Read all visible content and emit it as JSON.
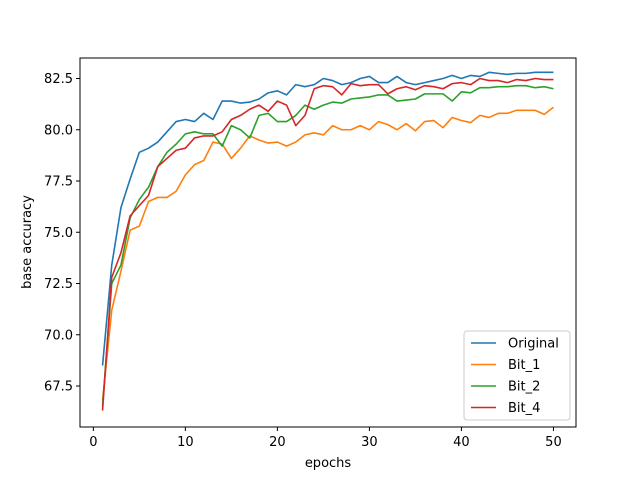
{
  "chart_data": {
    "type": "line",
    "title": "",
    "xlabel": "epochs",
    "ylabel": "base accuracy",
    "xlim": [
      -1.45,
      52.45
    ],
    "ylim": [
      65.5,
      83.5
    ],
    "x_ticks": [
      0,
      10,
      20,
      30,
      40,
      50
    ],
    "x_tick_labels": [
      "0",
      "10",
      "20",
      "30",
      "40",
      "50"
    ],
    "y_ticks": [
      67.5,
      70.0,
      72.5,
      75.0,
      77.5,
      80.0,
      82.5
    ],
    "y_tick_labels": [
      "67.5",
      "70.0",
      "72.5",
      "75.0",
      "77.5",
      "80.0",
      "82.5"
    ],
    "grid": false,
    "legend_position": "bottom-right",
    "x": [
      1,
      2,
      3,
      4,
      5,
      6,
      7,
      8,
      9,
      10,
      11,
      12,
      13,
      14,
      15,
      16,
      17,
      18,
      19,
      20,
      21,
      22,
      23,
      24,
      25,
      26,
      27,
      28,
      29,
      30,
      31,
      32,
      33,
      34,
      35,
      36,
      37,
      38,
      39,
      40,
      41,
      42,
      43,
      44,
      45,
      46,
      47,
      48,
      49,
      50
    ],
    "series": [
      {
        "name": "Original",
        "color": "#1f77b4",
        "values": [
          68.5,
          73.4,
          76.2,
          77.6,
          78.9,
          79.1,
          79.4,
          79.9,
          80.4,
          80.5,
          80.4,
          80.8,
          80.5,
          81.4,
          81.4,
          81.3,
          81.35,
          81.5,
          81.8,
          81.9,
          81.7,
          82.2,
          82.1,
          82.2,
          82.5,
          82.4,
          82.2,
          82.3,
          82.5,
          82.6,
          82.3,
          82.3,
          82.6,
          82.3,
          82.2,
          82.3,
          82.4,
          82.5,
          82.65,
          82.5,
          82.65,
          82.6,
          82.8,
          82.75,
          82.7,
          82.75,
          82.75,
          82.8,
          82.8,
          82.8
        ]
      },
      {
        "name": "Bit_1",
        "color": "#ff7f0e",
        "values": [
          66.8,
          71.2,
          73.1,
          75.1,
          75.3,
          76.5,
          76.7,
          76.7,
          77.0,
          77.8,
          78.3,
          78.5,
          79.4,
          79.3,
          78.6,
          79.1,
          79.7,
          79.5,
          79.35,
          79.4,
          79.2,
          79.4,
          79.75,
          79.85,
          79.75,
          80.2,
          80.0,
          80.0,
          80.2,
          80.0,
          80.4,
          80.25,
          80.0,
          80.3,
          79.95,
          80.4,
          80.45,
          80.1,
          80.6,
          80.45,
          80.35,
          80.7,
          80.6,
          80.8,
          80.8,
          80.95,
          80.95,
          80.95,
          80.75,
          81.1
        ]
      },
      {
        "name": "Bit_2",
        "color": "#2ca02c",
        "values": [
          66.5,
          72.5,
          73.4,
          75.7,
          76.6,
          77.2,
          78.2,
          78.9,
          79.3,
          79.8,
          79.9,
          79.8,
          79.8,
          79.2,
          80.2,
          80.0,
          79.6,
          80.7,
          80.8,
          80.4,
          80.4,
          80.7,
          81.2,
          81.0,
          81.2,
          81.35,
          81.3,
          81.5,
          81.55,
          81.6,
          81.7,
          81.7,
          81.4,
          81.45,
          81.5,
          81.75,
          81.75,
          81.75,
          81.4,
          81.85,
          81.8,
          82.05,
          82.05,
          82.1,
          82.1,
          82.15,
          82.15,
          82.05,
          82.1,
          82.0
        ]
      },
      {
        "name": "Bit_4",
        "color": "#d62728",
        "values": [
          66.3,
          72.8,
          74.0,
          75.8,
          76.3,
          76.8,
          78.2,
          78.6,
          79.0,
          79.1,
          79.6,
          79.7,
          79.7,
          79.9,
          80.5,
          80.7,
          81.0,
          81.2,
          80.9,
          81.4,
          81.2,
          80.2,
          80.7,
          82.0,
          82.15,
          82.1,
          81.7,
          82.25,
          82.15,
          82.2,
          82.2,
          81.75,
          82.0,
          82.1,
          81.95,
          82.15,
          82.1,
          82.0,
          82.25,
          82.3,
          82.2,
          82.5,
          82.4,
          82.4,
          82.3,
          82.45,
          82.4,
          82.5,
          82.45,
          82.45
        ]
      }
    ]
  }
}
